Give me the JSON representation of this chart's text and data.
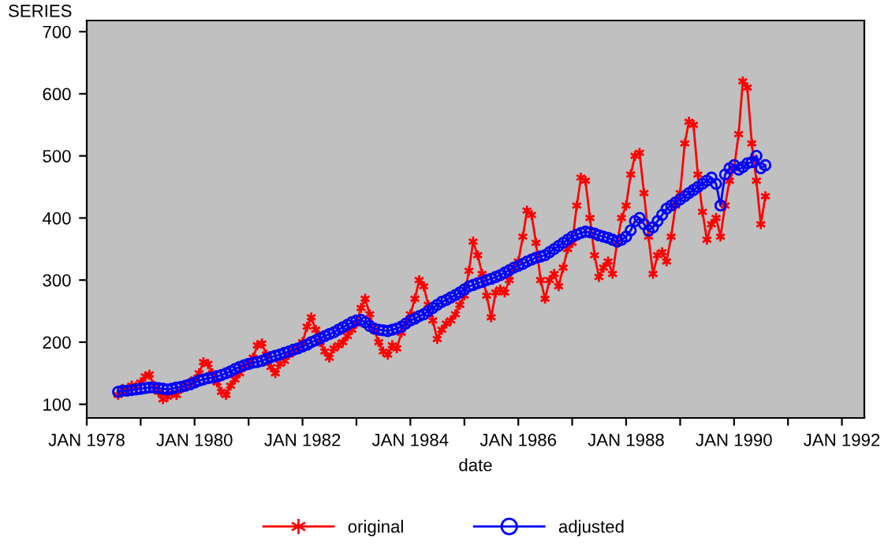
{
  "chart_data": {
    "type": "line",
    "xlabel": "date",
    "ylabel": "SERIES",
    "x": [
      "1978-08",
      "1978-09",
      "1978-10",
      "1978-11",
      "1978-12",
      "1979-01",
      "1979-02",
      "1979-03",
      "1979-04",
      "1979-05",
      "1979-06",
      "1979-07",
      "1979-08",
      "1979-09",
      "1979-10",
      "1979-11",
      "1979-12",
      "1980-01",
      "1980-02",
      "1980-03",
      "1980-04",
      "1980-05",
      "1980-06",
      "1980-07",
      "1980-08",
      "1980-09",
      "1980-10",
      "1980-11",
      "1980-12",
      "1981-01",
      "1981-02",
      "1981-03",
      "1981-04",
      "1981-05",
      "1981-06",
      "1981-07",
      "1981-08",
      "1981-09",
      "1981-10",
      "1981-11",
      "1981-12",
      "1982-01",
      "1982-02",
      "1982-03",
      "1982-04",
      "1982-05",
      "1982-06",
      "1982-07",
      "1982-08",
      "1982-09",
      "1982-10",
      "1982-11",
      "1982-12",
      "1983-01",
      "1983-02",
      "1983-03",
      "1983-04",
      "1983-05",
      "1983-06",
      "1983-07",
      "1983-08",
      "1983-09",
      "1983-10",
      "1983-11",
      "1983-12",
      "1984-01",
      "1984-02",
      "1984-03",
      "1984-04",
      "1984-05",
      "1984-06",
      "1984-07",
      "1984-08",
      "1984-09",
      "1984-10",
      "1984-11",
      "1984-12",
      "1985-01",
      "1985-02",
      "1985-03",
      "1985-04",
      "1985-05",
      "1985-06",
      "1985-07",
      "1985-08",
      "1985-09",
      "1985-10",
      "1985-11",
      "1985-12",
      "1986-01",
      "1986-02",
      "1986-03",
      "1986-04",
      "1986-05",
      "1986-06",
      "1986-07",
      "1986-08",
      "1986-09",
      "1986-10",
      "1986-11",
      "1986-12",
      "1987-01",
      "1987-02",
      "1987-03",
      "1987-04",
      "1987-05",
      "1987-06",
      "1987-07",
      "1987-08",
      "1987-09",
      "1987-10",
      "1987-11",
      "1987-12",
      "1988-01",
      "1988-02",
      "1988-03",
      "1988-04",
      "1988-05",
      "1988-06",
      "1988-07",
      "1988-08",
      "1988-09",
      "1988-10",
      "1988-11",
      "1988-12",
      "1989-01",
      "1989-02",
      "1989-03",
      "1989-04",
      "1989-05",
      "1989-06",
      "1989-07",
      "1989-08",
      "1989-09",
      "1989-10",
      "1989-11",
      "1989-12",
      "1990-01",
      "1990-02",
      "1990-03",
      "1990-04",
      "1990-05",
      "1990-06",
      "1990-07",
      "1990-08"
    ],
    "series": [
      {
        "name": "original",
        "color": "#ff0000",
        "marker": "cross",
        "values": [
          115,
          125,
          120,
          130,
          128,
          135,
          145,
          148,
          130,
          120,
          108,
          112,
          118,
          115,
          125,
          130,
          135,
          140,
          150,
          168,
          165,
          150,
          135,
          120,
          115,
          130,
          140,
          150,
          160,
          165,
          175,
          195,
          198,
          180,
          160,
          150,
          165,
          170,
          180,
          185,
          190,
          200,
          225,
          240,
          220,
          200,
          185,
          175,
          190,
          195,
          200,
          210,
          220,
          230,
          255,
          270,
          245,
          220,
          200,
          185,
          180,
          195,
          190,
          215,
          230,
          245,
          270,
          300,
          290,
          260,
          235,
          205,
          220,
          230,
          235,
          245,
          260,
          275,
          315,
          362,
          340,
          310,
          275,
          240,
          280,
          285,
          280,
          300,
          320,
          330,
          370,
          412,
          405,
          360,
          300,
          270,
          300,
          310,
          290,
          320,
          350,
          360,
          420,
          465,
          460,
          400,
          340,
          305,
          320,
          330,
          310,
          360,
          400,
          420,
          470,
          500,
          505,
          440,
          370,
          310,
          340,
          345,
          330,
          370,
          420,
          440,
          520,
          555,
          550,
          470,
          410,
          365,
          390,
          400,
          370,
          420,
          460,
          480,
          535,
          620,
          610,
          520,
          460,
          390,
          435
        ]
      },
      {
        "name": "adjusted",
        "color": "#0000ff",
        "marker": "circle",
        "values": [
          120,
          122,
          122,
          123,
          124,
          125,
          126,
          127,
          127,
          126,
          125,
          124,
          125,
          127,
          128,
          130,
          132,
          135,
          138,
          140,
          142,
          143,
          145,
          147,
          150,
          153,
          157,
          160,
          163,
          165,
          167,
          168,
          170,
          173,
          176,
          178,
          180,
          183,
          185,
          188,
          190,
          193,
          196,
          200,
          203,
          206,
          210,
          213,
          216,
          220,
          224,
          228,
          232,
          235,
          236,
          232,
          226,
          222,
          220,
          219,
          218,
          220,
          222,
          225,
          230,
          235,
          238,
          242,
          245,
          250,
          255,
          260,
          265,
          268,
          272,
          276,
          280,
          285,
          290,
          292,
          295,
          297,
          300,
          302,
          305,
          308,
          312,
          316,
          320,
          323,
          326,
          330,
          333,
          336,
          338,
          340,
          345,
          350,
          355,
          360,
          365,
          370,
          373,
          376,
          378,
          377,
          375,
          372,
          370,
          368,
          365,
          362,
          365,
          370,
          380,
          395,
          400,
          390,
          380,
          385,
          395,
          405,
          415,
          420,
          425,
          430,
          435,
          440,
          445,
          450,
          455,
          460,
          465,
          455,
          420,
          470,
          480,
          485,
          478,
          482,
          488,
          490,
          500,
          480,
          485
        ]
      }
    ],
    "xlim": [
      "1978-01",
      "1992-06"
    ],
    "xticks": [
      {
        "value": "1978-01",
        "label": "JAN 1978"
      },
      {
        "value": "1979-01",
        "label": null
      },
      {
        "value": "1980-01",
        "label": "JAN 1980"
      },
      {
        "value": "1981-01",
        "label": null
      },
      {
        "value": "1982-01",
        "label": "JAN 1982"
      },
      {
        "value": "1983-01",
        "label": null
      },
      {
        "value": "1984-01",
        "label": "JAN 1984"
      },
      {
        "value": "1985-01",
        "label": null
      },
      {
        "value": "1986-01",
        "label": "JAN 1986"
      },
      {
        "value": "1987-01",
        "label": null
      },
      {
        "value": "1988-01",
        "label": "JAN 1988"
      },
      {
        "value": "1989-01",
        "label": null
      },
      {
        "value": "1990-01",
        "label": "JAN 1990"
      },
      {
        "value": "1991-01",
        "label": null
      },
      {
        "value": "1992-01",
        "label": "JAN 1992"
      }
    ],
    "ylim": [
      78,
      718
    ],
    "yticks": [
      100,
      200,
      300,
      400,
      500,
      600,
      700
    ],
    "grid": false,
    "legend": "bottom",
    "line_style": "solid"
  }
}
